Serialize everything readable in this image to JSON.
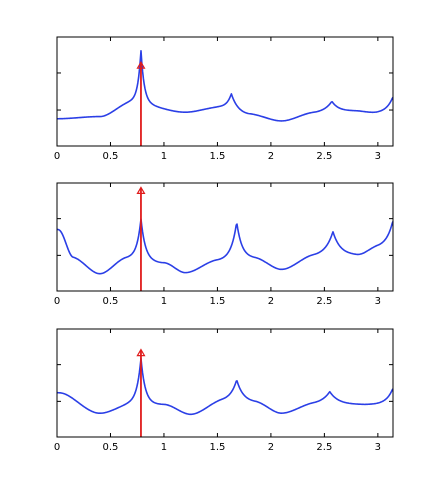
{
  "figure": {
    "colors": {
      "curve": "#2b3fe6",
      "stem": "#e01b1b",
      "axis": "#000000"
    }
  },
  "chart_data": [
    {
      "type": "line",
      "title": "",
      "xlabel": "",
      "ylabel": "",
      "xlim": [
        0,
        3.14159
      ],
      "ylim": [
        0,
        1
      ],
      "grid": false,
      "x_ticks": [
        0,
        0.5,
        1,
        1.5,
        2,
        2.5,
        3
      ],
      "x_tick_labels": [
        "0",
        "0.5",
        "1",
        "1.5",
        "2",
        "2.5",
        "3"
      ],
      "y_ticks": [
        0.33,
        0.67
      ],
      "curve_peaks": [
        {
          "x": 0.0,
          "y": 0.25,
          "w": 0.0,
          "side": "base"
        },
        {
          "x": 0.785,
          "y": 0.88,
          "w": 0.03
        },
        {
          "x": 1.63,
          "y": 0.48,
          "w": 0.05
        },
        {
          "x": 2.57,
          "y": 0.41,
          "w": 0.07
        },
        {
          "x": 3.14,
          "y": 0.45,
          "w": 0.06
        }
      ],
      "curve_baseline": [
        {
          "x": 0.0,
          "y": 0.25
        },
        {
          "x": 0.4,
          "y": 0.27
        },
        {
          "x": 0.7,
          "y": 0.4
        },
        {
          "x": 1.2,
          "y": 0.31
        },
        {
          "x": 1.5,
          "y": 0.35
        },
        {
          "x": 1.8,
          "y": 0.29
        },
        {
          "x": 2.1,
          "y": 0.23
        },
        {
          "x": 2.4,
          "y": 0.3
        },
        {
          "x": 2.8,
          "y": 0.32
        },
        {
          "x": 3.0,
          "y": 0.3
        }
      ],
      "stem": {
        "x": 0.785,
        "y": 0.76
      }
    },
    {
      "type": "line",
      "title": "",
      "xlabel": "",
      "ylabel": "",
      "xlim": [
        0,
        3.14159
      ],
      "ylim": [
        0,
        1
      ],
      "grid": false,
      "x_ticks": [
        0,
        0.5,
        1,
        1.5,
        2,
        2.5,
        3
      ],
      "x_tick_labels": [
        "0",
        "0.5",
        "1",
        "1.5",
        "2",
        "2.5",
        "3"
      ],
      "y_ticks": [
        0.33,
        0.67
      ],
      "curve_peaks": [
        {
          "x": 0.0,
          "y": 0.57,
          "w": 0.05
        },
        {
          "x": 0.785,
          "y": 0.67,
          "w": 0.04
        },
        {
          "x": 1.68,
          "y": 0.64,
          "w": 0.05
        },
        {
          "x": 2.58,
          "y": 0.55,
          "w": 0.07
        },
        {
          "x": 3.14,
          "y": 0.65,
          "w": 0.06
        }
      ],
      "curve_baseline": [
        {
          "x": 0.0,
          "y": 0.57
        },
        {
          "x": 0.15,
          "y": 0.3
        },
        {
          "x": 0.4,
          "y": 0.16
        },
        {
          "x": 0.65,
          "y": 0.3
        },
        {
          "x": 1.0,
          "y": 0.26
        },
        {
          "x": 1.2,
          "y": 0.17
        },
        {
          "x": 1.5,
          "y": 0.28
        },
        {
          "x": 1.85,
          "y": 0.3
        },
        {
          "x": 2.1,
          "y": 0.2
        },
        {
          "x": 2.4,
          "y": 0.32
        },
        {
          "x": 2.8,
          "y": 0.33
        },
        {
          "x": 3.0,
          "y": 0.4
        }
      ],
      "stem": {
        "x": 0.785,
        "y": 0.95
      }
    },
    {
      "type": "line",
      "title": "",
      "xlabel": "",
      "ylabel": "",
      "xlim": [
        0,
        3.14159
      ],
      "ylim": [
        0,
        1
      ],
      "grid": false,
      "x_ticks": [
        0,
        0.5,
        1,
        1.5,
        2,
        2.5,
        3
      ],
      "x_tick_labels": [
        "0",
        "0.5",
        "1",
        "1.5",
        "2",
        "2.5",
        "3"
      ],
      "y_ticks": [
        0.33,
        0.67
      ],
      "curve_peaks": [
        {
          "x": 0.0,
          "y": 0.41,
          "w": 0.06
        },
        {
          "x": 0.785,
          "y": 0.73,
          "w": 0.04
        },
        {
          "x": 1.68,
          "y": 0.53,
          "w": 0.06
        },
        {
          "x": 2.55,
          "y": 0.42,
          "w": 0.08
        },
        {
          "x": 3.14,
          "y": 0.45,
          "w": 0.06
        }
      ],
      "curve_baseline": [
        {
          "x": 0.0,
          "y": 0.41
        },
        {
          "x": 0.4,
          "y": 0.22
        },
        {
          "x": 0.7,
          "y": 0.3
        },
        {
          "x": 1.0,
          "y": 0.3
        },
        {
          "x": 1.25,
          "y": 0.21
        },
        {
          "x": 1.55,
          "y": 0.33
        },
        {
          "x": 1.85,
          "y": 0.32
        },
        {
          "x": 2.1,
          "y": 0.22
        },
        {
          "x": 2.4,
          "y": 0.3
        },
        {
          "x": 2.75,
          "y": 0.3
        },
        {
          "x": 2.95,
          "y": 0.3
        }
      ],
      "stem": {
        "x": 0.785,
        "y": 0.8
      }
    }
  ]
}
